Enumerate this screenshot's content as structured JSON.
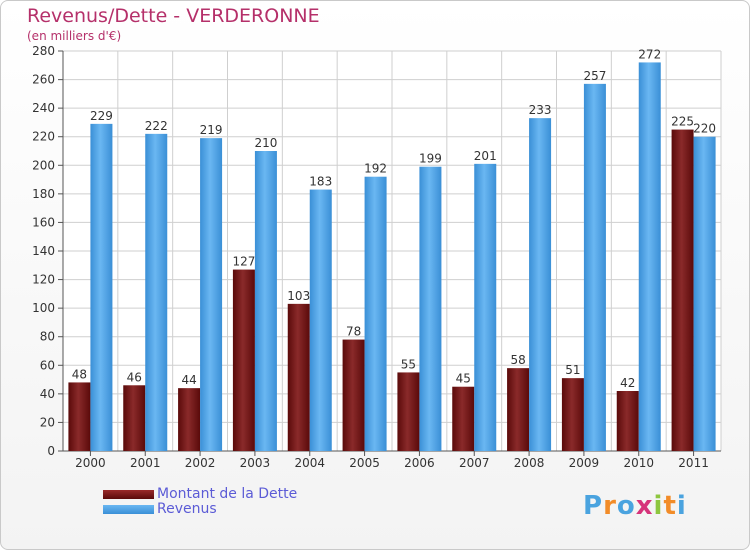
{
  "chart_data": {
    "type": "bar",
    "title": "Revenus/Dette - VERDERONNE",
    "subtitle": "(en milliers d'€)",
    "categories": [
      "2000",
      "2001",
      "2002",
      "2003",
      "2004",
      "2005",
      "2006",
      "2007",
      "2008",
      "2009",
      "2010",
      "2011"
    ],
    "series": [
      {
        "name": "Montant de la Dette",
        "color": "#7a1a1a",
        "values": [
          48,
          46,
          44,
          127,
          103,
          78,
          55,
          45,
          58,
          51,
          42,
          225
        ]
      },
      {
        "name": "Revenus",
        "color": "#4a9fe3",
        "values": [
          229,
          222,
          219,
          210,
          183,
          192,
          199,
          201,
          233,
          257,
          272,
          220
        ]
      }
    ],
    "ylim": [
      0,
      280
    ],
    "yticks": [
      0,
      20,
      40,
      60,
      80,
      100,
      120,
      140,
      160,
      180,
      200,
      220,
      240,
      260,
      280
    ],
    "grid": true,
    "legend_position": "bottom-left"
  },
  "logo": {
    "letters": [
      "P",
      "r",
      "o",
      "x",
      "i",
      "t",
      "i"
    ],
    "colors": [
      "#4aa3df",
      "#f28c28",
      "#4aa3df",
      "#d6337a",
      "#8dc63f",
      "#f28c28",
      "#4aa3df"
    ]
  }
}
